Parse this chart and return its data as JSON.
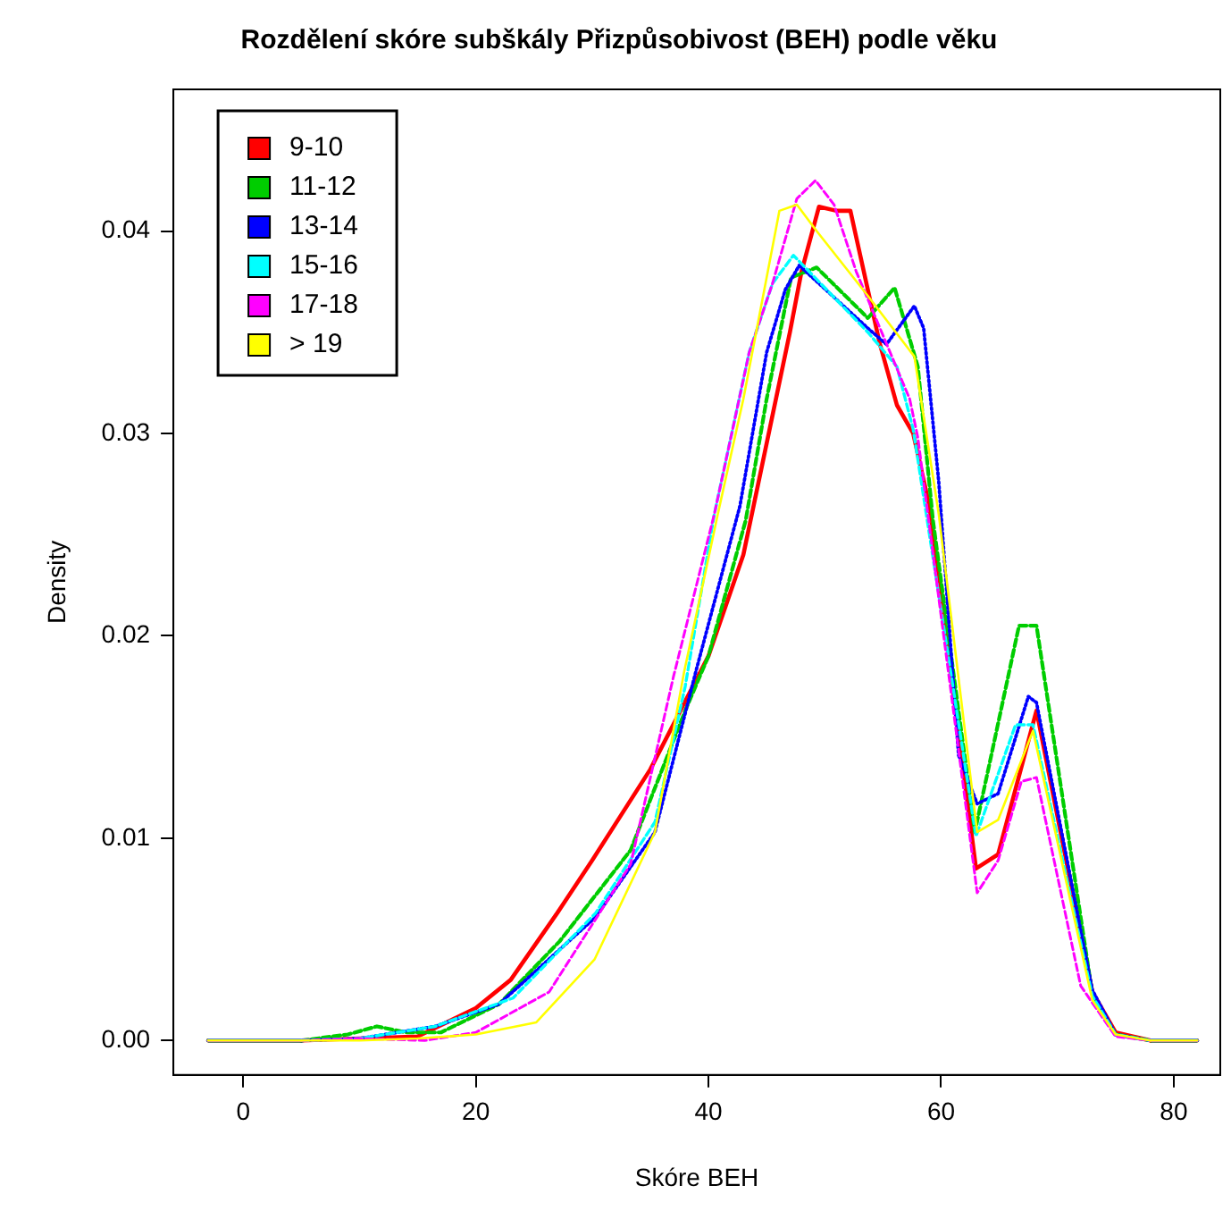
{
  "chart_data": {
    "type": "line",
    "title": "Rozdělení skóre subškály Přizpůsobivost (BEH) podle věku",
    "xlabel": "Skóre BEH",
    "ylabel": "Density",
    "xlim": [
      -6,
      84
    ],
    "xticks": [
      0,
      20,
      40,
      60,
      80
    ],
    "ylim": [
      -0.0017,
      0.047
    ],
    "yticks": [
      {
        "value": 0,
        "label": "0.00"
      },
      {
        "value": 0.01,
        "label": "0.01"
      },
      {
        "value": 0.02,
        "label": "0.02"
      },
      {
        "value": 0.03,
        "label": "0.03"
      },
      {
        "value": 0.04,
        "label": "0.04"
      }
    ],
    "grid": false,
    "legend": "top left",
    "marker": "none",
    "series": [
      {
        "name": "9-10",
        "color": "#ff0000",
        "line_style": "solid",
        "x": [
          -3,
          5,
          10,
          15,
          20,
          23,
          27,
          30,
          35,
          40,
          43,
          45,
          47,
          48,
          49.5,
          51,
          52.2,
          54.7,
          56.2,
          57.6,
          59,
          63,
          64.9,
          68.2,
          73,
          75,
          78,
          82
        ],
        "values": [
          0,
          0,
          0.0001,
          0.0002,
          0.0016,
          0.003,
          0.0063,
          0.0089,
          0.0134,
          0.019,
          0.024,
          0.0295,
          0.035,
          0.038,
          0.0412,
          0.041,
          0.041,
          0.0345,
          0.0314,
          0.03,
          0.0264,
          0.0085,
          0.0092,
          0.0163,
          0.0024,
          0.0004,
          0,
          0
        ]
      },
      {
        "name": "11-12",
        "color": "#00cd00",
        "line_style": "dashed",
        "x": [
          -3,
          5,
          9,
          11.5,
          14,
          17,
          22,
          27.2,
          33.3,
          38,
          40,
          43.2,
          45,
          47.1,
          49.3,
          53.7,
          56,
          58,
          59.3,
          62.9,
          66.7,
          68.2,
          73,
          75,
          78,
          82
        ],
        "values": [
          0,
          0,
          0.0003,
          0.0007,
          0.0004,
          0.0004,
          0.0018,
          0.0049,
          0.0094,
          0.0163,
          0.019,
          0.0257,
          0.0317,
          0.0377,
          0.0382,
          0.0357,
          0.0372,
          0.0333,
          0.0257,
          0.0103,
          0.0205,
          0.0205,
          0.0023,
          0.0003,
          0,
          0
        ]
      },
      {
        "name": "13-14",
        "color": "#0000ff",
        "line_style": "dotted",
        "x": [
          -3,
          5,
          10,
          16.5,
          22,
          30.3,
          35.4,
          38.9,
          42.7,
          45,
          46.6,
          47.8,
          53.7,
          55.3,
          57.7,
          58.5,
          59.8,
          61.5,
          63.1,
          64.9,
          67.5,
          68.2,
          73,
          75,
          78,
          82
        ],
        "values": [
          0,
          0,
          0.0001,
          0.0007,
          0.0018,
          0.0061,
          0.0103,
          0.0182,
          0.0264,
          0.034,
          0.0371,
          0.0383,
          0.0352,
          0.0344,
          0.0363,
          0.0352,
          0.0276,
          0.0141,
          0.0117,
          0.0122,
          0.017,
          0.0167,
          0.0025,
          0.0003,
          0,
          0
        ]
      },
      {
        "name": "15-16",
        "color": "#00ffff",
        "line_style": "dashed",
        "x": [
          -3,
          5,
          10,
          16.5,
          23.2,
          30.3,
          35.4,
          38,
          40.5,
          43.5,
          45.5,
          47.3,
          53.7,
          56.2,
          57.6,
          63,
          66.4,
          67.9,
          73,
          75,
          78,
          82
        ],
        "values": [
          0,
          0,
          0.0001,
          0.0007,
          0.0021,
          0.0063,
          0.0108,
          0.0175,
          0.026,
          0.034,
          0.0374,
          0.0388,
          0.035,
          0.0333,
          0.0302,
          0.0101,
          0.0156,
          0.0156,
          0.0022,
          0.0003,
          0,
          0
        ]
      },
      {
        "name": "17-18",
        "color": "#ff00ff",
        "line_style": "dashed",
        "x": [
          -3,
          5,
          10,
          15.6,
          20,
          26.3,
          33.3,
          37,
          40.5,
          43.5,
          45.5,
          47.6,
          49.2,
          50.8,
          52.7,
          57.3,
          58,
          63.1,
          64.9,
          66.9,
          68.2,
          72,
          75,
          78,
          82
        ],
        "values": [
          0,
          0,
          0.0001,
          0,
          0.0004,
          0.0024,
          0.0087,
          0.018,
          0.026,
          0.034,
          0.0374,
          0.0416,
          0.0425,
          0.0413,
          0.038,
          0.0317,
          0.0298,
          0.0073,
          0.0089,
          0.0128,
          0.013,
          0.0027,
          0.0002,
          0,
          0
        ]
      },
      {
        "name": "> 19",
        "color": "#ffff00",
        "line_style": "solid",
        "x": [
          -3,
          5,
          10,
          15,
          20,
          25.2,
          30.2,
          35.4,
          37.9,
          40.8,
          43,
          46.1,
          47.6,
          49.3,
          53.7,
          57.7,
          59.8,
          63.1,
          64.9,
          67.9,
          73,
          75,
          78,
          82
        ],
        "values": [
          0,
          0,
          0,
          0.0001,
          0.0003,
          0.0009,
          0.004,
          0.0103,
          0.0182,
          0.026,
          0.0317,
          0.041,
          0.0413,
          0.04,
          0.0368,
          0.0338,
          0.026,
          0.0103,
          0.0109,
          0.0153,
          0.002,
          0.0003,
          0,
          0
        ]
      }
    ]
  }
}
